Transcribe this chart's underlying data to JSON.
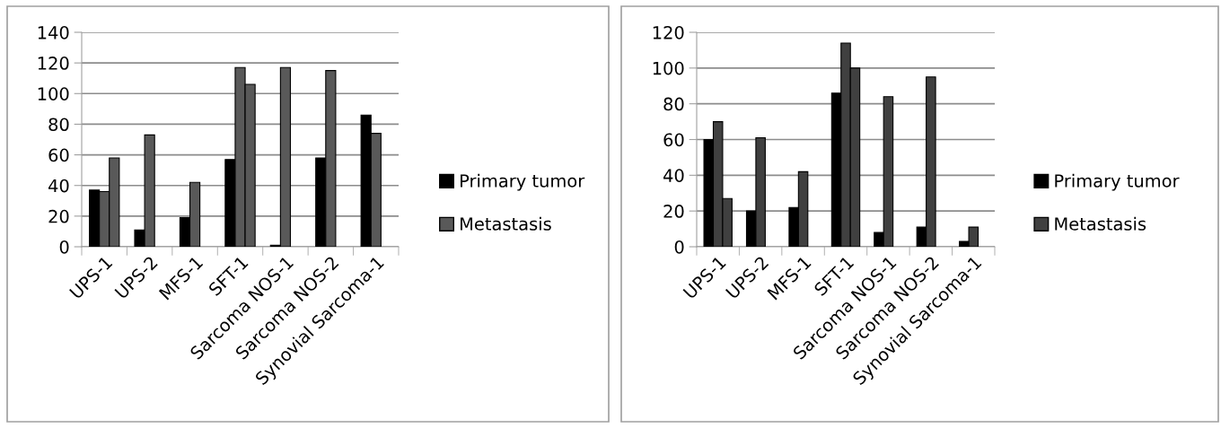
{
  "chart_data": [
    {
      "type": "bar",
      "categories": [
        "UPS-1",
        "UPS-2",
        "MFS-1",
        "SFT-1",
        "Sarcoma NOS-1",
        "Sarcoma NOS-2",
        "Synovial Sarcoma-1"
      ],
      "series": [
        {
          "name": "Primary tumor",
          "color": "#000000",
          "values": [
            37,
            11,
            19,
            57,
            1,
            58,
            86
          ]
        },
        {
          "name": "Metastasis",
          "color": "#595959",
          "values": [
            36,
            73,
            42,
            117,
            117,
            115,
            74
          ]
        },
        {
          "color": "#595959",
          "values": [
            58,
            null,
            null,
            106,
            null,
            null,
            null
          ]
        }
      ],
      "ylim": [
        0,
        140
      ],
      "yticks": [
        0,
        20,
        40,
        60,
        80,
        100,
        120,
        140
      ],
      "grid": "y",
      "legend": "right"
    },
    {
      "type": "bar",
      "categories": [
        "UPS-1",
        "UPS-2",
        "MFS-1",
        "SFT-1",
        "Sarcoma NOS-1",
        "Sarcoma NOS-2",
        "Synovial Sarcoma-1"
      ],
      "series": [
        {
          "name": "Primary tumor",
          "color": "#000000",
          "values": [
            60,
            20,
            22,
            86,
            8,
            11,
            3
          ]
        },
        {
          "name": "Metastasis",
          "color": "#404040",
          "values": [
            70,
            61,
            42,
            114,
            84,
            95,
            11
          ]
        },
        {
          "color": "#404040",
          "values": [
            27,
            null,
            null,
            100,
            null,
            null,
            null
          ]
        }
      ],
      "ylim": [
        0,
        120
      ],
      "yticks": [
        0,
        20,
        40,
        60,
        80,
        100,
        120
      ],
      "grid": "y",
      "legend": "right"
    }
  ]
}
